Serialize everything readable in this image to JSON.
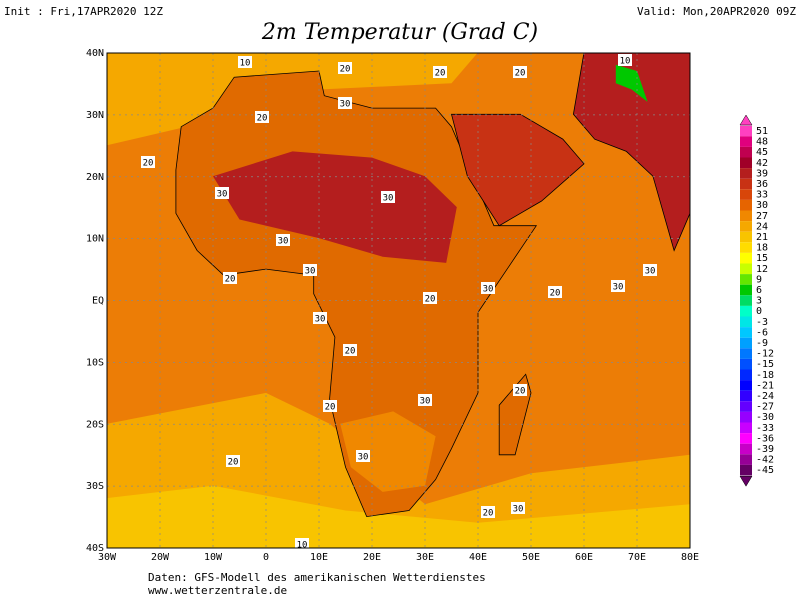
{
  "header": {
    "init": "Init : Fri,17APR2020 12Z",
    "valid": "Valid: Mon,20APR2020 09Z",
    "title": "2m Temperatur (Grad C)"
  },
  "axes": {
    "lat_labels": [
      "40N",
      "30N",
      "20N",
      "10N",
      "EQ",
      "10S",
      "20S",
      "30S",
      "40S"
    ],
    "lon_labels": [
      "30W",
      "20W",
      "10W",
      "0",
      "10E",
      "20E",
      "30E",
      "40E",
      "50E",
      "60E",
      "70E",
      "80E"
    ]
  },
  "colorbar": {
    "levels": [
      51,
      48,
      45,
      42,
      39,
      36,
      33,
      30,
      27,
      24,
      21,
      18,
      15,
      12,
      9,
      6,
      3,
      0,
      -3,
      -6,
      -9,
      -12,
      -15,
      -18,
      -21,
      -24,
      -27,
      -30,
      -33,
      -36,
      -39,
      -42,
      -45
    ],
    "colors": [
      "#ff40c0",
      "#e0007e",
      "#c00050",
      "#a00028",
      "#b41e1e",
      "#c83214",
      "#d8460a",
      "#e66400",
      "#f08800",
      "#f5a800",
      "#f8c400",
      "#ffdc00",
      "#ffff00",
      "#c8ff00",
      "#64e600",
      "#00c800",
      "#00dc64",
      "#00ffc8",
      "#00e6e6",
      "#00c8ff",
      "#00a0ff",
      "#0078ff",
      "#0050ff",
      "#0028ff",
      "#0000ff",
      "#3200ff",
      "#6400ff",
      "#9600ff",
      "#c800ff",
      "#ff00ff",
      "#c800c8",
      "#960096",
      "#640064"
    ]
  },
  "contour_labels": [
    "10",
    "20",
    "10",
    "20",
    "20",
    "30",
    "20",
    "20",
    "30",
    "30",
    "30",
    "20",
    "30",
    "20",
    "30",
    "20",
    "30",
    "30",
    "20",
    "30",
    "20",
    "30",
    "20",
    "10",
    "20",
    "20",
    "30",
    "30"
  ],
  "footer": {
    "source": "Daten: GFS-Modell des amerikanischen Wetterdienstes",
    "url": "www.wetterzentrale.de"
  }
}
